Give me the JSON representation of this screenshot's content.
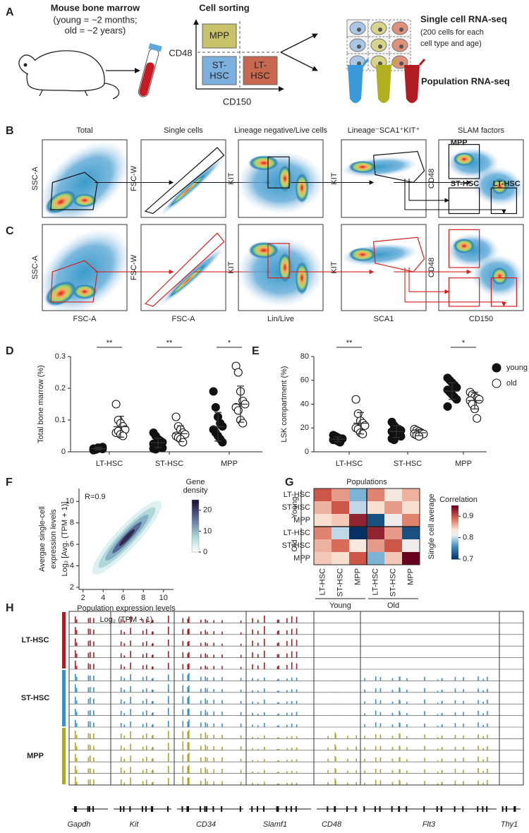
{
  "panel_a": {
    "letter": "A",
    "source_title": "Mouse bone marrow",
    "source_note": [
      "(young = ~2 months;",
      "old = ~2 years)"
    ],
    "sorting_title": "Cell sorting",
    "gates": [
      [
        "MPP"
      ],
      [
        "ST-",
        "HSC"
      ],
      [
        "LT-",
        "HSC"
      ]
    ],
    "y_axis": "CD48",
    "x_axis": "CD150",
    "single_cell_title": "Single cell RNA-seq",
    "single_cell_note": [
      "(200 cells for each",
      "cell type and age)"
    ],
    "population_title": "Population RNA-seq"
  },
  "panel_bc": {
    "letters": [
      "B",
      "C"
    ],
    "titles": [
      "Total",
      "Single cells",
      "Lineage negative/Live cells",
      "Lineage⁻SCA1⁺KIT⁺",
      "SLAM factors"
    ],
    "x_labels": [
      "FSC-A",
      "FSC-A",
      "Lin/Live",
      "SCA1",
      "CD150"
    ],
    "y_labels": [
      "SSC-A",
      "FSC-W",
      "KIT",
      "KIT",
      "CD48"
    ],
    "gate_labels": [
      "MPP",
      "ST-HSC",
      "LT-HSC"
    ]
  },
  "chart_data": [
    {
      "type": "strip",
      "letter": "D",
      "y_label": "Total bone marrow (%)",
      "categories": [
        "LT-HSC",
        "ST-HSC",
        "MPP"
      ],
      "ylim": [
        0,
        0.3
      ],
      "yticks": [
        0,
        0.1,
        0.2,
        0.3
      ],
      "significance": [
        "**",
        "**",
        "*"
      ],
      "legend": false,
      "series": [
        {
          "marker": "filled",
          "color": "#111111",
          "values": [
            [
              0.005,
              0.008,
              0.01,
              0.012,
              0.015,
              0.01,
              0.007,
              0.013,
              0.011,
              0.009
            ],
            [
              0.06,
              0.05,
              0.04,
              0.035,
              0.03,
              0.025,
              0.02,
              0.018,
              0.015,
              0.012,
              0.01,
              0.008
            ],
            [
              0.19,
              0.14,
              0.11,
              0.09,
              0.08,
              0.07,
              0.06,
              0.05,
              0.04,
              0.03
            ]
          ],
          "mean": [
            0.01,
            0.028,
            0.079
          ],
          "sd": [
            0.004,
            0.015,
            0.045
          ]
        },
        {
          "marker": "open",
          "color": "#111111",
          "values": [
            [
              0.15,
              0.1,
              0.09,
              0.08,
              0.07,
              0.06,
              0.065,
              0.055,
              0.05
            ],
            [
              0.11,
              0.08,
              0.07,
              0.06,
              0.055,
              0.05,
              0.045,
              0.04,
              0.03
            ],
            [
              0.27,
              0.25,
              0.19,
              0.16,
              0.15,
              0.14,
              0.13,
              0.1,
              0.09
            ]
          ],
          "mean": [
            0.079,
            0.057,
            0.15
          ],
          "sd": [
            0.033,
            0.025,
            0.057
          ]
        }
      ]
    },
    {
      "type": "strip",
      "letter": "E",
      "y_label": "LSK compartment (%)",
      "categories": [
        "LT-HSC",
        "ST-HSC",
        "MPP"
      ],
      "ylim": [
        0,
        80
      ],
      "yticks": [
        0,
        20,
        40,
        60,
        80
      ],
      "significance": [
        "**",
        null,
        "*"
      ],
      "legend": true,
      "series": [
        {
          "name": "young",
          "marker": "filled",
          "color": "#111111",
          "values": [
            [
              14,
              13,
              12,
              11,
              11,
              10,
              10,
              9,
              8
            ],
            [
              25,
              22,
              20,
              19,
              18,
              17,
              16,
              15,
              14,
              13,
              11,
              10
            ],
            [
              62,
              60,
              58,
              56,
              54,
              52,
              50,
              48,
              46,
              44,
              38
            ]
          ],
          "mean": [
            10.5,
            17,
            51
          ],
          "sd": [
            2,
            5,
            7
          ]
        },
        {
          "name": "old",
          "marker": "open",
          "color": "#111111",
          "values": [
            [
              44,
              32,
              26,
              24,
              22,
              20,
              19,
              16,
              15
            ],
            [
              19,
              18,
              17,
              16,
              15,
              15,
              14,
              13
            ],
            [
              50,
              48,
              46,
              45,
              44,
              43,
              40,
              36,
              28
            ]
          ],
          "mean": [
            24,
            16,
            43
          ],
          "sd": [
            9,
            2.5,
            7
          ]
        }
      ]
    },
    {
      "type": "density",
      "letter": "F",
      "annotation": "R=0.9",
      "x_label": [
        "Population expression levels",
        "Log₂ (TPM + 1)"
      ],
      "y_label": [
        "Avergae single-cell",
        "expression levels",
        "Log₂ [Avg. (TPM + 1)]"
      ],
      "xlim": [
        1.6,
        11
      ],
      "xticks": [
        2,
        4,
        6,
        8,
        10
      ],
      "ylim": [
        1.8,
        11.2
      ],
      "yticks": [
        2,
        4,
        6,
        8,
        10
      ],
      "colorbar": {
        "title": [
          "Gene",
          "density"
        ],
        "lim": [
          0,
          25
        ],
        "ticks": [
          0,
          10,
          20
        ]
      }
    },
    {
      "type": "heatmap",
      "letter": "G",
      "title": "Populations",
      "side_label": "Single cell average",
      "row_labels": [
        "LT-HSC",
        "ST-HSC",
        "MPP",
        "LT-HSC",
        "ST-HSC",
        "MPP"
      ],
      "row_groups": [
        "Young",
        "Old"
      ],
      "col_labels": [
        "LT-HSC",
        "ST-HSC",
        "MPP",
        "LT-HSC",
        "ST-HSC",
        "MPP"
      ],
      "col_groups": [
        "Young",
        "Old"
      ],
      "values": [
        [
          0.9,
          0.87,
          0.78,
          0.88,
          0.83,
          0.86
        ],
        [
          0.86,
          0.9,
          0.8,
          0.84,
          0.87,
          0.84
        ],
        [
          0.84,
          0.85,
          0.93,
          0.72,
          0.82,
          0.88
        ],
        [
          0.88,
          0.8,
          0.7,
          0.93,
          0.87,
          0.72
        ],
        [
          0.86,
          0.89,
          0.83,
          0.87,
          0.9,
          0.82
        ],
        [
          0.85,
          0.84,
          0.9,
          0.78,
          0.85,
          0.95
        ]
      ],
      "colorbar": {
        "title": "Correlation",
        "lim": [
          0.7,
          0.95
        ],
        "ticks": [
          0.9,
          0.8,
          0.7
        ]
      }
    }
  ],
  "panel_h": {
    "letter": "H",
    "groups": [
      {
        "name": "LT-HSC",
        "color": "#a51f27"
      },
      {
        "name": "ST-HSC",
        "color": "#3e8fc8"
      },
      {
        "name": "MPP",
        "color": "#a8a832"
      }
    ],
    "genes": [
      "Gapdh",
      "Kit",
      "CD34",
      "Slamf1",
      "CD48",
      "Flt3",
      "Thy1"
    ]
  }
}
